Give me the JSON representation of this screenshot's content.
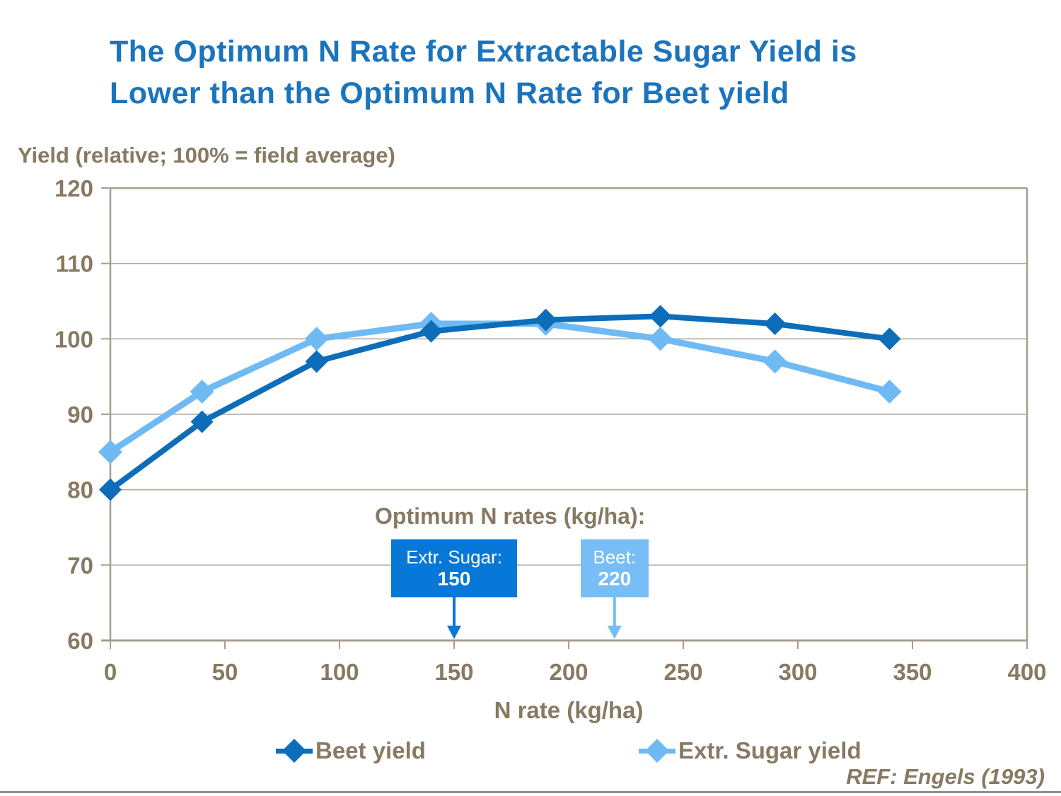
{
  "slide": {
    "title": "The Optimum N Rate for Extractable Sugar Yield is\nLower than the Optimum N Rate for Beet yield",
    "reference": "REF: Engels (1993)"
  },
  "chart_data": {
    "type": "line",
    "ylabel_heading": "Yield (relative; 100% = field average)",
    "xlabel": "N rate (kg/ha)",
    "x": [
      0,
      40,
      90,
      140,
      190,
      240,
      290,
      340
    ],
    "series": [
      {
        "name": "Beet yield",
        "values": [
          80,
          89,
          97,
          101,
          102.5,
          103,
          102,
          100
        ]
      },
      {
        "name": "Extr. Sugar yield",
        "values": [
          85,
          93,
          100,
          102,
          102,
          100,
          97,
          93
        ]
      }
    ],
    "xlim": [
      0,
      400
    ],
    "ylim": [
      60,
      120
    ],
    "xticks": [
      0,
      50,
      100,
      150,
      200,
      250,
      300,
      350,
      400
    ],
    "yticks": [
      60,
      70,
      80,
      90,
      100,
      110,
      120
    ],
    "grid": "horizontal",
    "legend_position": "bottom",
    "legend": [
      {
        "label": "Beet yield"
      },
      {
        "label": "Extr. Sugar yield"
      }
    ],
    "annotation": {
      "heading": "Optimum N rates (kg/ha):",
      "markers": [
        {
          "series": "Extr. Sugar yield",
          "label": "Extr. Sugar:",
          "value": "150",
          "x": 150
        },
        {
          "series": "Beet yield",
          "label": "Beet:",
          "value": "220",
          "x": 220
        }
      ]
    }
  },
  "colors": {
    "title": "#1B74BC",
    "beet_line": "#0D6DB8",
    "sugar_line": "#70BAF4",
    "axis_text": "#877A62",
    "gridline": "#B3AB9C",
    "frame": "#A89E8E",
    "box_sugar": "#0778D7",
    "box_beet": "#76BEF5",
    "box_text": "#FFFFFF",
    "footer_line": "#8E8E8E"
  }
}
